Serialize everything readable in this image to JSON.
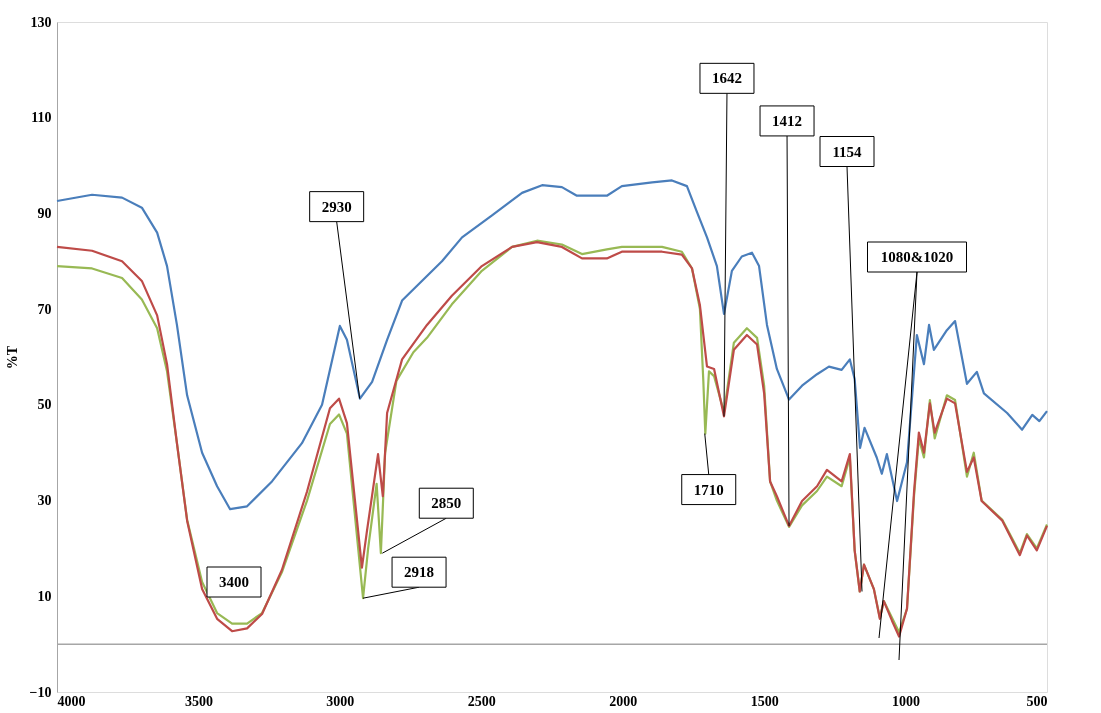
{
  "chart_data": {
    "type": "line",
    "ylabel": "%T",
    "xlim": [
      4000,
      500
    ],
    "xticks": [
      4000,
      3500,
      3000,
      2500,
      2000,
      1500,
      1000,
      500
    ],
    "ylim": [
      -10,
      130
    ],
    "yticks": [
      -10,
      10,
      30,
      50,
      70,
      90,
      110,
      130
    ],
    "grid": false,
    "legend": false,
    "marker": "none",
    "line_style": "solid",
    "series": [
      {
        "color": "#4a7ebb",
        "x": [
          4000,
          3876,
          3770,
          3700,
          3646,
          3611,
          3576,
          3540,
          3487,
          3434,
          3388,
          3328,
          3240,
          3134,
          3063,
          3000,
          2975,
          2929,
          2886,
          2833,
          2780,
          2710,
          2639,
          2568,
          2462,
          2356,
          2285,
          2215,
          2162,
          2056,
          2003,
          1896,
          1826,
          1773,
          1737,
          1702,
          1667,
          1642,
          1614,
          1579,
          1543,
          1518,
          1490,
          1455,
          1412,
          1366,
          1313,
          1271,
          1226,
          1197,
          1180,
          1161,
          1145,
          1102,
          1084,
          1066,
          1030,
          995,
          960,
          935,
          917,
          900,
          854,
          825,
          783,
          748,
          723,
          641,
          588,
          552,
          527,
          500
        ],
        "values": [
          92.6,
          93.9,
          93.3,
          91.2,
          86,
          79,
          66.7,
          52,
          40,
          33,
          28.2,
          28.8,
          34,
          42,
          50,
          66.5,
          63.6,
          51.3,
          54.8,
          63.6,
          71.8,
          75.9,
          80,
          85,
          89.6,
          94.3,
          95.9,
          95.5,
          93.7,
          93.7,
          95.7,
          96.5,
          96.9,
          95.7,
          90.2,
          85,
          79,
          69,
          78,
          81,
          81.8,
          79,
          66.7,
          57.5,
          51.1,
          54,
          56.4,
          58,
          57.3,
          59.5,
          55.4,
          41,
          45.2,
          39,
          35.6,
          39.7,
          29.9,
          38,
          64.6,
          58.5,
          66.7,
          61.5,
          65.6,
          67.5,
          54.4,
          56.9,
          52.4,
          48.3,
          44.8,
          47.9,
          46.6,
          48.7
        ]
      },
      {
        "color": "#98b954",
        "x": [
          4000,
          3876,
          3770,
          3700,
          3646,
          3611,
          3576,
          3540,
          3487,
          3434,
          3381,
          3328,
          3275,
          3205,
          3116,
          3035,
          3003,
          2975,
          2918,
          2900,
          2870,
          2855,
          2840,
          2800,
          2740,
          2692,
          2604,
          2498,
          2391,
          2303,
          2215,
          2144,
          2056,
          2003,
          1861,
          1791,
          1755,
          1727,
          1715,
          1708,
          1695,
          1677,
          1642,
          1607,
          1561,
          1525,
          1500,
          1479,
          1455,
          1412,
          1366,
          1313,
          1278,
          1226,
          1197,
          1180,
          1162,
          1147,
          1112,
          1091,
          1077,
          1048,
          1023,
          995,
          970,
          953,
          935,
          914,
          897,
          854,
          825,
          783,
          759,
          731,
          658,
          596,
          571,
          536,
          500
        ],
        "values": [
          79,
          78.5,
          76.5,
          72,
          66,
          57,
          42,
          26,
          13,
          6.5,
          4.3,
          4.3,
          6.5,
          15,
          30,
          46,
          48,
          44,
          9.6,
          20,
          33.5,
          19,
          40,
          55,
          61,
          64,
          71,
          78,
          83,
          84.3,
          83.5,
          81.5,
          82.5,
          83,
          83,
          82,
          78.5,
          70,
          55,
          44,
          57,
          56,
          48.5,
          63,
          66,
          64,
          54,
          34,
          30,
          24.5,
          29,
          32,
          35,
          33,
          39,
          19.6,
          11,
          16.6,
          11.5,
          5.5,
          9,
          5.5,
          2.5,
          7.4,
          31,
          43,
          39,
          51,
          43,
          52,
          51,
          35,
          40,
          30,
          26,
          19,
          23,
          20,
          25
        ]
      },
      {
        "color": "#be4b48",
        "x": [
          4000,
          3876,
          3770,
          3700,
          3646,
          3611,
          3576,
          3540,
          3487,
          3434,
          3381,
          3328,
          3275,
          3205,
          3116,
          3035,
          3003,
          2975,
          2922,
          2904,
          2865,
          2848,
          2833,
          2780,
          2692,
          2604,
          2498,
          2391,
          2303,
          2215,
          2144,
          2056,
          2003,
          1861,
          1791,
          1755,
          1727,
          1702,
          1677,
          1642,
          1607,
          1561,
          1525,
          1500,
          1479,
          1455,
          1412,
          1366,
          1313,
          1278,
          1226,
          1197,
          1180,
          1162,
          1147,
          1112,
          1091,
          1077,
          1048,
          1023,
          995,
          970,
          953,
          935,
          914,
          897,
          854,
          825,
          783,
          759,
          731,
          658,
          596,
          571,
          536,
          500
        ],
        "values": [
          83,
          82.2,
          80,
          75.9,
          68.7,
          58.5,
          42,
          25.8,
          11.5,
          5.3,
          2.7,
          3.3,
          6.3,
          15.5,
          31.9,
          49.3,
          51.3,
          46.2,
          16,
          23.7,
          39.7,
          30.9,
          48.3,
          59.5,
          66.7,
          72.8,
          79,
          83,
          84,
          83,
          80.6,
          80.6,
          82,
          82,
          81.4,
          78.5,
          70.8,
          58,
          57.5,
          47.6,
          61.5,
          64.6,
          62.6,
          52.4,
          34,
          30.9,
          24.7,
          29.9,
          33,
          36.4,
          34,
          39.7,
          19.6,
          11,
          16.6,
          11.5,
          5.3,
          9,
          4.9,
          1.6,
          7.4,
          31.9,
          44.2,
          40,
          50.3,
          44.2,
          51.3,
          50.3,
          36,
          39,
          29.9,
          25.8,
          18.6,
          22.7,
          19.6,
          24.7
        ]
      }
    ],
    "annotations": [
      {
        "text": "2930",
        "x": 2930,
        "y": 51.3
      },
      "3400",
      {
        "text": "2850",
        "x": 2850,
        "y": 19
      },
      {
        "text": "2918",
        "x": 2918,
        "y": 9.6
      },
      {
        "text": "1710",
        "x": 1710,
        "y": 44
      },
      {
        "text": "1642",
        "x": 1642,
        "y": 47.6
      },
      {
        "text": "1412",
        "x": 1412,
        "y": 24.7
      },
      {
        "text": "1154",
        "x": 1154,
        "y": 11
      },
      "1080&1020"
    ]
  }
}
